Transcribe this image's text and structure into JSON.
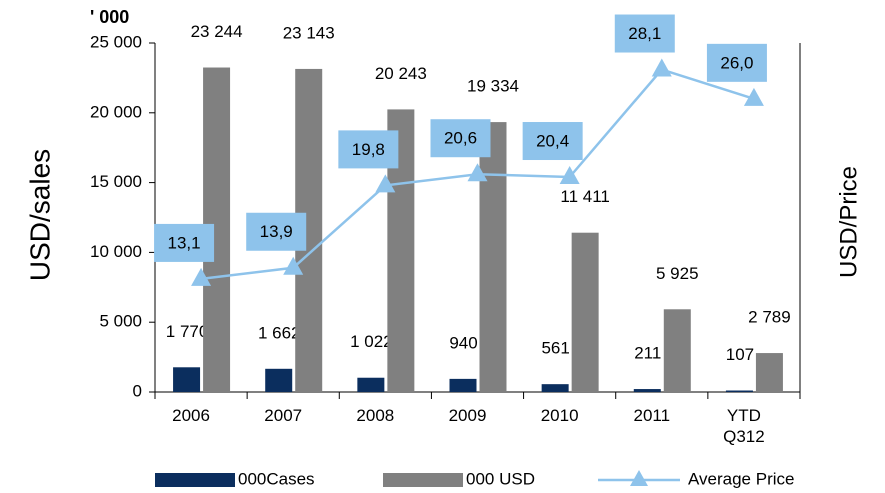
{
  "chart_data": {
    "type": "bar",
    "unit_label": "' 000",
    "y_label": "USD/sales",
    "y2_label": "USD/Price",
    "categories": [
      "2006",
      "2007",
      "2008",
      "2009",
      "2010",
      "2011",
      "YTD Q312"
    ],
    "series": [
      {
        "name": "000Cases",
        "color": "#0b2e5e",
        "values": [
          1770,
          1662,
          1022,
          940,
          561,
          211,
          107
        ],
        "value_labels": [
          "1 770",
          "1 662",
          "1 022",
          "940",
          "561",
          "211",
          "107"
        ]
      },
      {
        "name": "000 USD",
        "color": "#808080",
        "values": [
          23244,
          23143,
          20243,
          19334,
          11411,
          5925,
          2789
        ],
        "value_labels": [
          "23 244",
          "23 143",
          "20 243",
          "19 334",
          "11 411",
          "5 925",
          "2 789"
        ]
      },
      {
        "name": "Average Price",
        "color": "#8ec3eb",
        "type": "line",
        "axis": "y2",
        "values": [
          13.1,
          13.9,
          19.8,
          20.6,
          20.4,
          28.1,
          26.0
        ],
        "value_labels": [
          "13,1",
          "13,9",
          "19,8",
          "20,6",
          "20,4",
          "28,1",
          "26,0"
        ]
      }
    ],
    "ylim": [
      0,
      25000
    ],
    "yticks": [
      {
        "value": 0,
        "label": "0"
      },
      {
        "value": 5000,
        "label": "5 000"
      },
      {
        "value": 10000,
        "label": "10 000"
      },
      {
        "value": 15000,
        "label": "15 000"
      },
      {
        "value": 20000,
        "label": "20 000"
      },
      {
        "value": 25000,
        "label": "25 000"
      }
    ],
    "y2lim": [
      5,
      30
    ],
    "legend": "bottom"
  }
}
